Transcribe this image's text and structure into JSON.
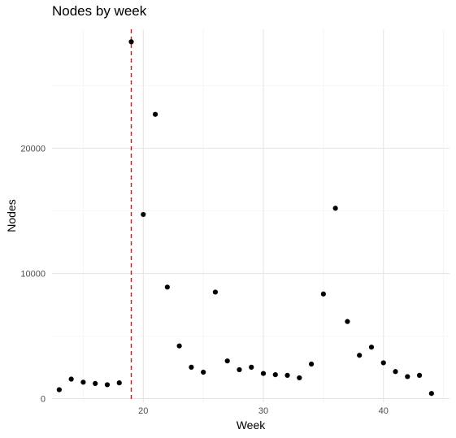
{
  "chart_data": {
    "type": "scatter",
    "title": "Nodes by week",
    "xlabel": "Week",
    "ylabel": "Nodes",
    "xlim": [
      12.4,
      45.5
    ],
    "ylim": [
      -300,
      29500
    ],
    "x_ticks": [
      20,
      30,
      40
    ],
    "x_tick_labels": [
      "20",
      "30",
      "40"
    ],
    "y_ticks": [
      0,
      10000,
      20000
    ],
    "y_tick_labels": [
      "0",
      "10000",
      "20000"
    ],
    "grid": true,
    "reference_line": {
      "orientation": "vertical",
      "x": 19,
      "style": "dashed",
      "color": "#ff0000"
    },
    "point_color": "#000000",
    "points": [
      {
        "x": 13,
        "y": 700
      },
      {
        "x": 14,
        "y": 1550
      },
      {
        "x": 15,
        "y": 1300
      },
      {
        "x": 16,
        "y": 1200
      },
      {
        "x": 17,
        "y": 1100
      },
      {
        "x": 18,
        "y": 1250
      },
      {
        "x": 19,
        "y": 28500
      },
      {
        "x": 20,
        "y": 14700
      },
      {
        "x": 21,
        "y": 22700
      },
      {
        "x": 22,
        "y": 8900
      },
      {
        "x": 23,
        "y": 4200
      },
      {
        "x": 24,
        "y": 2500
      },
      {
        "x": 25,
        "y": 2100
      },
      {
        "x": 26,
        "y": 8500
      },
      {
        "x": 27,
        "y": 3000
      },
      {
        "x": 28,
        "y": 2300
      },
      {
        "x": 29,
        "y": 2500
      },
      {
        "x": 30,
        "y": 2000
      },
      {
        "x": 31,
        "y": 1900
      },
      {
        "x": 32,
        "y": 1850
      },
      {
        "x": 33,
        "y": 1650
      },
      {
        "x": 34,
        "y": 2750
      },
      {
        "x": 35,
        "y": 8350
      },
      {
        "x": 36,
        "y": 15200
      },
      {
        "x": 37,
        "y": 6150
      },
      {
        "x": 38,
        "y": 3450
      },
      {
        "x": 39,
        "y": 4100
      },
      {
        "x": 40,
        "y": 2850
      },
      {
        "x": 41,
        "y": 2150
      },
      {
        "x": 42,
        "y": 1750
      },
      {
        "x": 43,
        "y": 1850
      },
      {
        "x": 44,
        "y": 400
      }
    ]
  }
}
